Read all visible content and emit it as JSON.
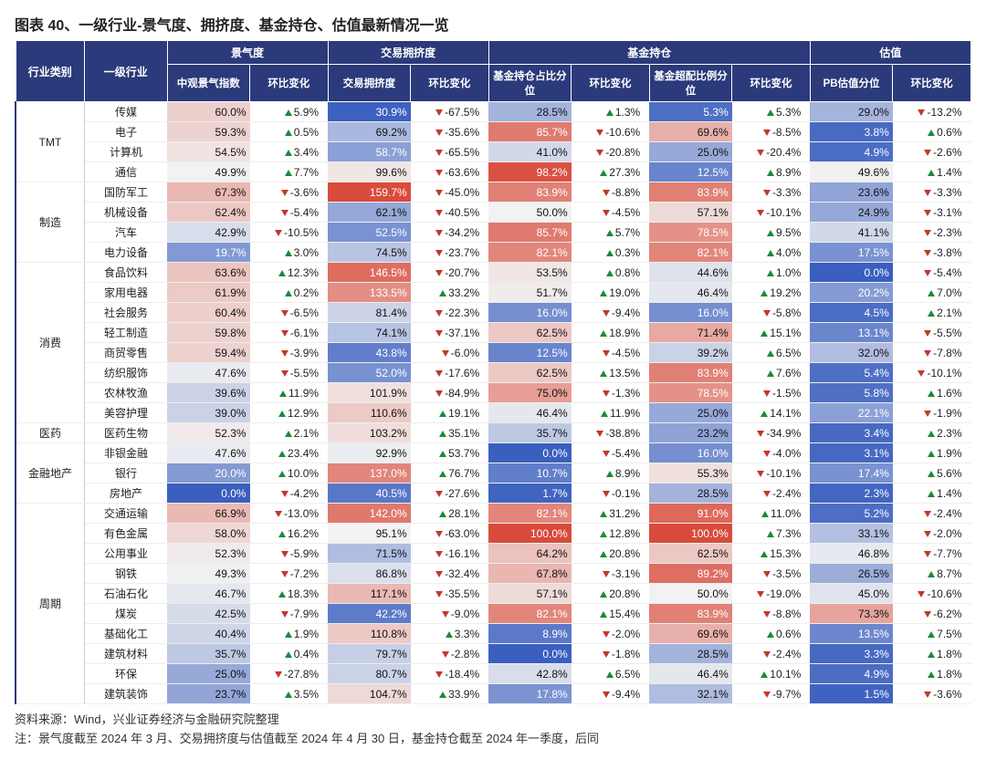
{
  "title": "图表 40、一级行业-景气度、拥挤度、基金持仓、估值最新情况一览",
  "source": "资料来源：Wind，兴业证券经济与金融研究院整理",
  "note": "注：景气度截至 2024 年 3 月、交易拥挤度与估值截至 2024 年 4 月 30 日，基金持仓截至 2024 年一季度，后同",
  "colors": {
    "header_bg": "#2a3a7a",
    "header_fg": "#ffffff",
    "up": "#1a8a3a",
    "down": "#c0392b",
    "heat_min": "#3a5fbf",
    "heat_mid": "#f2f2f2",
    "heat_max": "#d94a3a"
  },
  "header": {
    "cat": "行业类别",
    "name": "一级行业",
    "groups": [
      "景气度",
      "交易拥挤度",
      "基金持仓",
      "估值"
    ],
    "sub": [
      "中观景气指数",
      "环比变化",
      "交易拥挤度",
      "环比变化",
      "基金持仓占比分位",
      "环比变化",
      "基金超配比例分位",
      "环比变化",
      "PB估值分位",
      "环比变化"
    ]
  },
  "heat_ranges": {
    "c1": [
      0,
      100
    ],
    "c3": [
      30,
      160
    ],
    "c5": [
      0,
      100
    ],
    "c7": [
      0,
      100
    ],
    "c9": [
      0,
      100
    ]
  },
  "categories": [
    {
      "name": "TMT",
      "rows": [
        {
          "n": "传媒",
          "c1": 60.0,
          "d1": 5.9,
          "c3": 30.9,
          "d3": -67.5,
          "c5": 28.5,
          "d5": 1.3,
          "c7": 5.3,
          "d7": 5.3,
          "c9": 29.0,
          "d9": -13.2
        },
        {
          "n": "电子",
          "c1": 59.3,
          "d1": 0.5,
          "c3": 69.2,
          "d3": -35.6,
          "c5": 85.7,
          "d5": -10.6,
          "c7": 69.6,
          "d7": -8.5,
          "c9": 3.8,
          "d9": 0.6
        },
        {
          "n": "计算机",
          "c1": 54.5,
          "d1": 3.4,
          "c3": 58.7,
          "d3": -65.5,
          "c5": 41.0,
          "d5": -20.8,
          "c7": 25.0,
          "d7": -20.4,
          "c9": 4.9,
          "d9": -2.6
        },
        {
          "n": "通信",
          "c1": 49.9,
          "d1": 7.7,
          "c3": 99.6,
          "d3": -63.6,
          "c5": 98.2,
          "d5": 27.3,
          "c7": 12.5,
          "d7": 8.9,
          "c9": 49.6,
          "d9": 1.4
        }
      ]
    },
    {
      "name": "制造",
      "rows": [
        {
          "n": "国防军工",
          "c1": 67.3,
          "d1": -3.6,
          "c3": 159.7,
          "d3": -45.0,
          "c5": 83.9,
          "d5": -8.8,
          "c7": 83.9,
          "d7": -3.3,
          "c9": 23.6,
          "d9": -3.3
        },
        {
          "n": "机械设备",
          "c1": 62.4,
          "d1": -5.4,
          "c3": 62.1,
          "d3": -40.5,
          "c5": 50.0,
          "d5": -4.5,
          "c7": 57.1,
          "d7": -10.1,
          "c9": 24.9,
          "d9": -3.1
        },
        {
          "n": "汽车",
          "c1": 42.9,
          "d1": -10.5,
          "c3": 52.5,
          "d3": -34.2,
          "c5": 85.7,
          "d5": 5.7,
          "c7": 78.5,
          "d7": 9.5,
          "c9": 41.1,
          "d9": -2.3
        },
        {
          "n": "电力设备",
          "c1": 19.7,
          "d1": 3.0,
          "c3": 74.5,
          "d3": -23.7,
          "c5": 82.1,
          "d5": 0.3,
          "c7": 82.1,
          "d7": 4.0,
          "c9": 17.5,
          "d9": -3.8
        }
      ]
    },
    {
      "name": "消费",
      "rows": [
        {
          "n": "食品饮料",
          "c1": 63.6,
          "d1": 12.3,
          "c3": 146.5,
          "d3": -20.7,
          "c5": 53.5,
          "d5": 0.8,
          "c7": 44.6,
          "d7": 1.0,
          "c9": 0.0,
          "d9": -5.4
        },
        {
          "n": "家用电器",
          "c1": 61.9,
          "d1": 0.2,
          "c3": 133.5,
          "d3": 33.2,
          "c5": 51.7,
          "d5": 19.0,
          "c7": 46.4,
          "d7": 19.2,
          "c9": 20.2,
          "d9": 7.0
        },
        {
          "n": "社会服务",
          "c1": 60.4,
          "d1": -6.5,
          "c3": 81.4,
          "d3": -22.3,
          "c5": 16.0,
          "d5": -9.4,
          "c7": 16.0,
          "d7": -5.8,
          "c9": 4.5,
          "d9": 2.1
        },
        {
          "n": "轻工制造",
          "c1": 59.8,
          "d1": -6.1,
          "c3": 74.1,
          "d3": -37.1,
          "c5": 62.5,
          "d5": 18.9,
          "c7": 71.4,
          "d7": 15.1,
          "c9": 13.1,
          "d9": -5.5
        },
        {
          "n": "商贸零售",
          "c1": 59.4,
          "d1": -3.9,
          "c3": 43.8,
          "d3": -6.0,
          "c5": 12.5,
          "d5": -4.5,
          "c7": 39.2,
          "d7": 6.5,
          "c9": 32.0,
          "d9": -7.8
        },
        {
          "n": "纺织服饰",
          "c1": 47.6,
          "d1": -5.5,
          "c3": 52.0,
          "d3": -17.6,
          "c5": 62.5,
          "d5": 13.5,
          "c7": 83.9,
          "d7": 7.6,
          "c9": 5.4,
          "d9": -10.1
        },
        {
          "n": "农林牧渔",
          "c1": 39.6,
          "d1": 11.9,
          "c3": 101.9,
          "d3": -84.9,
          "c5": 75.0,
          "d5": -1.3,
          "c7": 78.5,
          "d7": -1.5,
          "c9": 5.8,
          "d9": 1.6
        },
        {
          "n": "美容护理",
          "c1": 39.0,
          "d1": 12.9,
          "c3": 110.6,
          "d3": 19.1,
          "c5": 46.4,
          "d5": 11.9,
          "c7": 25.0,
          "d7": 14.1,
          "c9": 22.1,
          "d9": -1.9
        }
      ]
    },
    {
      "name": "医药",
      "rows": [
        {
          "n": "医药生物",
          "c1": 52.3,
          "d1": 2.1,
          "c3": 103.2,
          "d3": 35.1,
          "c5": 35.7,
          "d5": -38.8,
          "c7": 23.2,
          "d7": -34.9,
          "c9": 3.4,
          "d9": 2.3
        }
      ]
    },
    {
      "name": "金融地产",
      "rows": [
        {
          "n": "非银金融",
          "c1": 47.6,
          "d1": 23.4,
          "c3": 92.9,
          "d3": 53.7,
          "c5": 0.0,
          "d5": -5.4,
          "c7": 16.0,
          "d7": -4.0,
          "c9": 3.1,
          "d9": 1.9
        },
        {
          "n": "银行",
          "c1": 20.0,
          "d1": 10.0,
          "c3": 137.0,
          "d3": 76.7,
          "c5": 10.7,
          "d5": 8.9,
          "c7": 55.3,
          "d7": -10.1,
          "c9": 17.4,
          "d9": 5.6
        },
        {
          "n": "房地产",
          "c1": 0.0,
          "d1": -4.2,
          "c3": 40.5,
          "d3": -27.6,
          "c5": 1.7,
          "d5": -0.1,
          "c7": 28.5,
          "d7": -2.4,
          "c9": 2.3,
          "d9": 1.4
        }
      ]
    },
    {
      "name": "周期",
      "rows": [
        {
          "n": "交通运输",
          "c1": 66.9,
          "d1": -13.0,
          "c3": 142.0,
          "d3": 28.1,
          "c5": 82.1,
          "d5": 31.2,
          "c7": 91.0,
          "d7": 11.0,
          "c9": 5.2,
          "d9": -2.4
        },
        {
          "n": "有色金属",
          "c1": 58.0,
          "d1": 16.2,
          "c3": 95.1,
          "d3": -63.0,
          "c5": 100.0,
          "d5": 12.8,
          "c7": 100.0,
          "d7": 7.3,
          "c9": 33.1,
          "d9": -2.0
        },
        {
          "n": "公用事业",
          "c1": 52.3,
          "d1": -5.9,
          "c3": 71.5,
          "d3": -16.1,
          "c5": 64.2,
          "d5": 20.8,
          "c7": 62.5,
          "d7": 15.3,
          "c9": 46.8,
          "d9": -7.7
        },
        {
          "n": "钢铁",
          "c1": 49.3,
          "d1": -7.2,
          "c3": 86.8,
          "d3": -32.4,
          "c5": 67.8,
          "d5": -3.1,
          "c7": 89.2,
          "d7": -3.5,
          "c9": 26.5,
          "d9": 8.7
        },
        {
          "n": "石油石化",
          "c1": 46.7,
          "d1": 18.3,
          "c3": 117.1,
          "d3": -35.5,
          "c5": 57.1,
          "d5": 20.8,
          "c7": 50.0,
          "d7": -19.0,
          "c9": 45.0,
          "d9": -10.6
        },
        {
          "n": "煤炭",
          "c1": 42.5,
          "d1": -7.9,
          "c3": 42.2,
          "d3": -9.0,
          "c5": 82.1,
          "d5": 15.4,
          "c7": 83.9,
          "d7": -8.8,
          "c9": 73.3,
          "d9": -6.2
        },
        {
          "n": "基础化工",
          "c1": 40.4,
          "d1": 1.9,
          "c3": 110.8,
          "d3": 3.3,
          "c5": 8.9,
          "d5": -2.0,
          "c7": 69.6,
          "d7": 0.6,
          "c9": 13.5,
          "d9": 7.5
        },
        {
          "n": "建筑材料",
          "c1": 35.7,
          "d1": 0.4,
          "c3": 79.7,
          "d3": -2.8,
          "c5": 0.0,
          "d5": -1.8,
          "c7": 28.5,
          "d7": -2.4,
          "c9": 3.3,
          "d9": 1.8
        },
        {
          "n": "环保",
          "c1": 25.0,
          "d1": -27.8,
          "c3": 80.7,
          "d3": -18.4,
          "c5": 42.8,
          "d5": 6.5,
          "c7": 46.4,
          "d7": 10.1,
          "c9": 4.9,
          "d9": 1.8
        },
        {
          "n": "建筑装饰",
          "c1": 23.7,
          "d1": 3.5,
          "c3": 104.7,
          "d3": 33.9,
          "c5": 17.8,
          "d5": -9.4,
          "c7": 32.1,
          "d7": -9.7,
          "c9": 1.5,
          "d9": -3.6
        }
      ]
    }
  ]
}
